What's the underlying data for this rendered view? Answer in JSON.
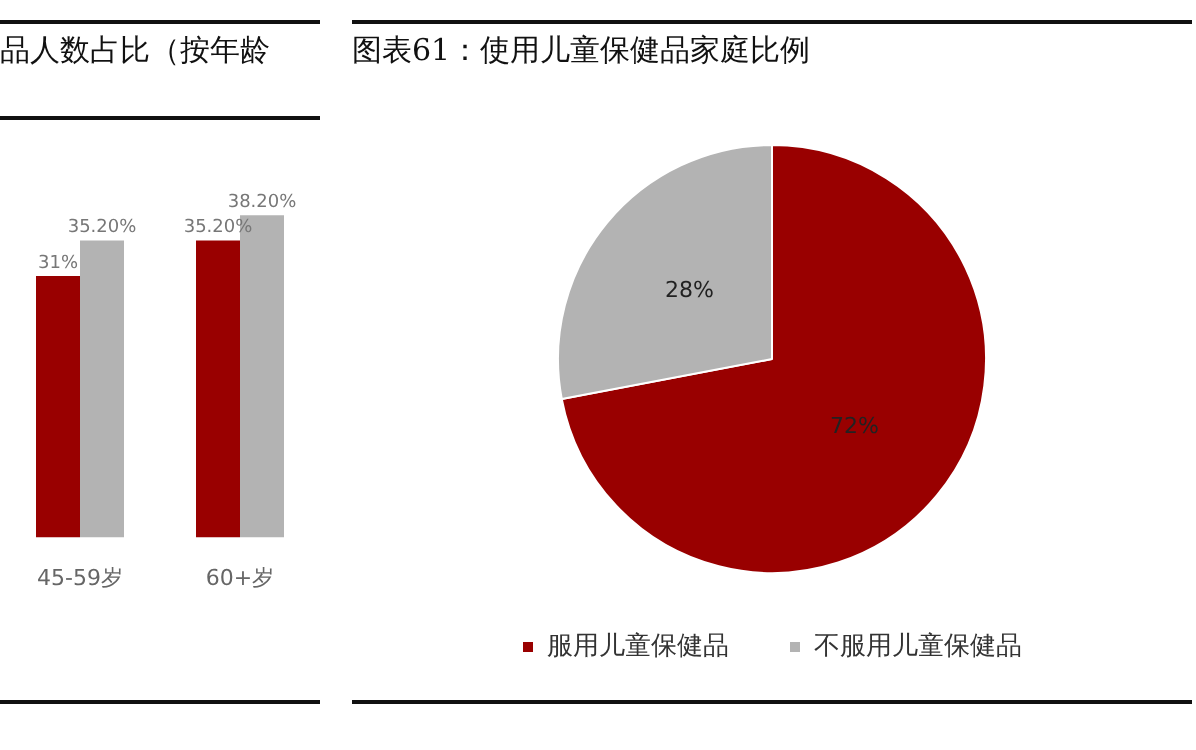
{
  "chart_data": [
    {
      "type": "bar",
      "title": "品人数占比（按年龄",
      "categories": [
        "45-59岁",
        "60+岁"
      ],
      "series": [
        {
          "color": "#990000",
          "values": [
            31,
            35.2
          ],
          "value_labels": [
            "31%",
            "35.20%"
          ]
        },
        {
          "color": "#b3b3b3",
          "values": [
            35.2,
            38.2
          ],
          "value_labels": [
            "35.20%",
            "38.20%"
          ]
        }
      ],
      "legend": false,
      "grid": false,
      "tick_labels": "x"
    },
    {
      "type": "pie",
      "title": "图表61：使用儿童保健品家庭比例",
      "categories": [
        "服用儿童保健品",
        "不服用儿童保健品"
      ],
      "values": [
        72,
        28
      ],
      "colors": [
        "#990000",
        "#b3b3b3"
      ],
      "value_labels": [
        "72%",
        "28%"
      ],
      "legend": "bottom"
    }
  ]
}
